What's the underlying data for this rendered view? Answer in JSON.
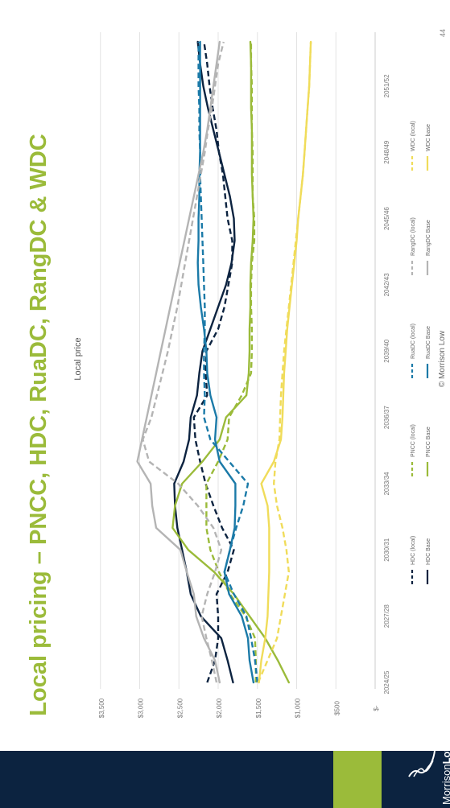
{
  "slide": {
    "title": "Local pricing – PNCC, HDC, RuaDC, RangDC & WDC",
    "page_number": "44",
    "copyright": "© Morrison Low",
    "logo_text_part1": "Morrison",
    "logo_text_part2": "Low"
  },
  "colors": {
    "title": "#9bbb3a",
    "band": "#0c2340",
    "accent": "#9bbb3a",
    "PNCC": "#9bbb3a",
    "HDC": "#0c2340",
    "RuaDC": "#1b7aa8",
    "RangDC": "#b4b4b4",
    "WDC": "#f0dc5a",
    "grid": "#e3e3e3",
    "tick": "#777777"
  },
  "chart_data": {
    "type": "line",
    "title": "Local price",
    "x": [
      "2024/25",
      "2025/26",
      "2026/27",
      "2027/28",
      "2028/29",
      "2029/30",
      "2030/31",
      "2031/32",
      "2032/33",
      "2033/34",
      "2034/35",
      "2035/36",
      "2036/37",
      "2037/38",
      "2038/39",
      "2039/40",
      "2040/41",
      "2041/42",
      "2042/43",
      "2043/44",
      "2044/45",
      "2045/46",
      "2046/47",
      "2047/48",
      "2048/49",
      "2049/50",
      "2050/51",
      "2051/52",
      "2052/53",
      "2053/54"
    ],
    "x_tick_labels": [
      "2024/25",
      "2027/28",
      "2030/31",
      "2033/34",
      "2036/37",
      "2039/40",
      "2042/43",
      "2045/46",
      "2048/49",
      "2051/52"
    ],
    "y_ticks": [
      "$-",
      "$500",
      "$1,000",
      "$1,500",
      "$2,000",
      "$2,500",
      "$3,000",
      "$3,500"
    ],
    "ylim": [
      0,
      3500
    ],
    "grid": true,
    "legend_position": "bottom",
    "series": [
      {
        "name": "HDC (local)",
        "style": "dashed",
        "color_key": "HDC",
        "values": [
          2140,
          2040,
          2000,
          2000,
          2020,
          1880,
          1800,
          1950,
          2060,
          2160,
          2230,
          2290,
          2310,
          2140,
          2160,
          2150,
          2000,
          1920,
          1870,
          1820,
          1820,
          1880,
          1910,
          1940,
          1990,
          2020,
          2070,
          2110,
          2140,
          2180
        ]
      },
      {
        "name": "HDC Base",
        "style": "solid",
        "color_key": "HDC",
        "values": [
          1810,
          1880,
          1960,
          2220,
          2350,
          2400,
          2460,
          2520,
          2550,
          2560,
          2440,
          2370,
          2350,
          2270,
          2240,
          2200,
          2100,
          2000,
          1900,
          1830,
          1790,
          1800,
          1850,
          1920,
          1990,
          2060,
          2130,
          2190,
          2230,
          2260
        ]
      },
      {
        "name": "PNCC (local)",
        "style": "dashed",
        "color_key": "PNCC",
        "values": [
          1520,
          1520,
          1530,
          1650,
          1850,
          1990,
          2100,
          2150,
          2150,
          2150,
          2000,
          1880,
          1860,
          1700,
          1580,
          1570,
          1570,
          1580,
          1580,
          1570,
          1540,
          1540,
          1560,
          1560,
          1560,
          1570,
          1570,
          1570,
          1580,
          1580
        ]
      },
      {
        "name": "PNCC Base",
        "style": "solid",
        "color_key": "PNCC",
        "values": [
          1100,
          1240,
          1400,
          1600,
          1800,
          2050,
          2380,
          2580,
          2550,
          2460,
          2200,
          1980,
          1900,
          1640,
          1610,
          1600,
          1600,
          1590,
          1590,
          1580,
          1560,
          1550,
          1560,
          1570,
          1570,
          1570,
          1580,
          1580,
          1580,
          1590
        ]
      },
      {
        "name": "RuaDC (local)",
        "style": "dashed",
        "color_key": "RuaDC",
        "values": [
          1500,
          1530,
          1580,
          1640,
          1800,
          1920,
          1850,
          1770,
          1680,
          1620,
          1860,
          2100,
          2180,
          2170,
          2180,
          2180,
          2170,
          2170,
          2180,
          2190,
          2200,
          2210,
          2220,
          2230,
          2230,
          2240,
          2240,
          2250,
          2250,
          2250
        ]
      },
      {
        "name": "RuaDC Base",
        "style": "solid",
        "color_key": "RuaDC",
        "values": [
          1550,
          1600,
          1620,
          1700,
          1860,
          1920,
          1850,
          1790,
          1780,
          1780,
          1980,
          2040,
          2020,
          2100,
          2140,
          2150,
          2180,
          2220,
          2250,
          2260,
          2250,
          2250,
          2240,
          2240,
          2230,
          2230,
          2230,
          2230,
          2230,
          2230
        ]
      },
      {
        "name": "RangDC (local)",
        "style": "dashed",
        "color_key": "RangDC",
        "values": [
          2020,
          2080,
          2150,
          2210,
          2140,
          2040,
          1960,
          2060,
          2260,
          2510,
          2880,
          2960,
          2850,
          2780,
          2710,
          2640,
          2580,
          2520,
          2470,
          2420,
          2370,
          2320,
          2270,
          2220,
          2170,
          2130,
          2080,
          2040,
          2000,
          1930
        ]
      },
      {
        "name": "RangDC Base",
        "style": "solid",
        "color_key": "RangDC",
        "values": [
          1980,
          2040,
          2180,
          2280,
          2310,
          2400,
          2480,
          2790,
          2840,
          2860,
          3030,
          2970,
          2910,
          2850,
          2790,
          2730,
          2670,
          2610,
          2550,
          2490,
          2430,
          2370,
          2310,
          2250,
          2190,
          2140,
          2100,
          2060,
          2020,
          1980
        ]
      },
      {
        "name": "WDC (local)",
        "style": "dashed",
        "color_key": "WDC",
        "values": [
          1490,
          1370,
          1250,
          1200,
          1150,
          1100,
          1130,
          1180,
          1250,
          1290,
          1270,
          1220,
          1210,
          1200,
          1180,
          1160,
          1130,
          1100,
          1070,
          1040,
          1010,
          980,
          950,
          920,
          900,
          880,
          860,
          840,
          830,
          820
        ]
      },
      {
        "name": "WDC base",
        "style": "solid",
        "color_key": "WDC",
        "values": [
          1480,
          1450,
          1400,
          1370,
          1360,
          1350,
          1350,
          1350,
          1370,
          1450,
          1290,
          1200,
          1180,
          1170,
          1160,
          1140,
          1120,
          1090,
          1060,
          1030,
          1000,
          980,
          950,
          920,
          900,
          880,
          860,
          840,
          830,
          820
        ]
      }
    ]
  }
}
